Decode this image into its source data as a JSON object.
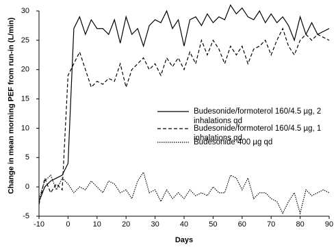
{
  "chart_data": {
    "type": "line",
    "x_label": "Days",
    "y_label": "Change in mean morning PEF from run-in (L/min)",
    "x": [
      -10,
      -8,
      -6,
      -4,
      -2,
      0,
      2,
      4,
      6,
      8,
      10,
      12,
      14,
      16,
      18,
      20,
      22,
      24,
      26,
      28,
      30,
      32,
      34,
      36,
      38,
      40,
      42,
      44,
      46,
      48,
      50,
      52,
      54,
      56,
      58,
      60,
      62,
      64,
      66,
      68,
      70,
      72,
      74,
      76,
      78,
      80,
      82,
      84,
      86,
      88,
      90
    ],
    "series": [
      {
        "name": "Budesonide/formoterol 160/4.5 µg, 2 inhalations qd",
        "color": "#000000",
        "style": "solid",
        "values": [
          -2.5,
          0,
          1,
          1.5,
          2,
          4,
          27,
          29,
          26,
          28.5,
          27,
          27,
          26,
          28.5,
          24.5,
          29,
          26,
          27,
          24,
          27.5,
          28.5,
          28,
          30,
          27,
          28.5,
          24,
          28.5,
          29,
          27.5,
          29.5,
          28,
          29,
          28.5,
          31,
          29.5,
          30.5,
          29,
          28.5,
          30,
          28,
          29.5,
          28,
          29,
          27.5,
          25,
          29,
          26,
          28,
          26,
          26.5,
          27
        ]
      },
      {
        "name": "Budesonide/formoterol 160/4.5 µg, 1 inhalations qd",
        "color": "#000000",
        "style": "dashed",
        "values": [
          -3,
          1.5,
          -1,
          0.5,
          -0.5,
          19,
          21,
          23,
          20,
          17,
          18,
          17.5,
          18.5,
          18,
          21,
          17,
          20,
          21,
          22,
          20,
          21,
          19,
          22,
          20.5,
          22,
          20,
          23,
          21,
          25,
          22.5,
          25,
          23.5,
          21,
          24,
          22.5,
          24,
          21,
          23.5,
          24,
          25,
          22.5,
          25,
          27,
          24,
          22.5,
          25,
          26,
          25,
          26,
          25.5,
          25
        ]
      },
      {
        "name": "Budesonide 400 µg qd",
        "color": "#000000",
        "style": "dotted",
        "values": [
          -2,
          1,
          2,
          -0.5,
          1.5,
          0.5,
          -1,
          0,
          -0.5,
          1,
          0,
          -1,
          1,
          0.5,
          -1,
          -0.5,
          -2,
          1,
          2.5,
          -1,
          -0.5,
          -2.5,
          -0.5,
          -2,
          -1,
          -2,
          -0.5,
          -1.5,
          -1,
          -1.5,
          0,
          -1,
          -1,
          2,
          1.5,
          -0.5,
          1.5,
          -2,
          -1,
          -1,
          -2,
          -2.5,
          -4.5,
          -2.5,
          -1,
          -4.5,
          -0.5,
          -1.5,
          -1,
          -0.5,
          -1
        ]
      }
    ],
    "xlim": [
      -10,
      90
    ],
    "xticks": [
      -10,
      0,
      10,
      20,
      30,
      40,
      50,
      60,
      70,
      80,
      90
    ],
    "ylim": [
      -5,
      30
    ],
    "yticks": [
      -5,
      0,
      5,
      10,
      15,
      20,
      25,
      30
    ],
    "grid": false
  }
}
